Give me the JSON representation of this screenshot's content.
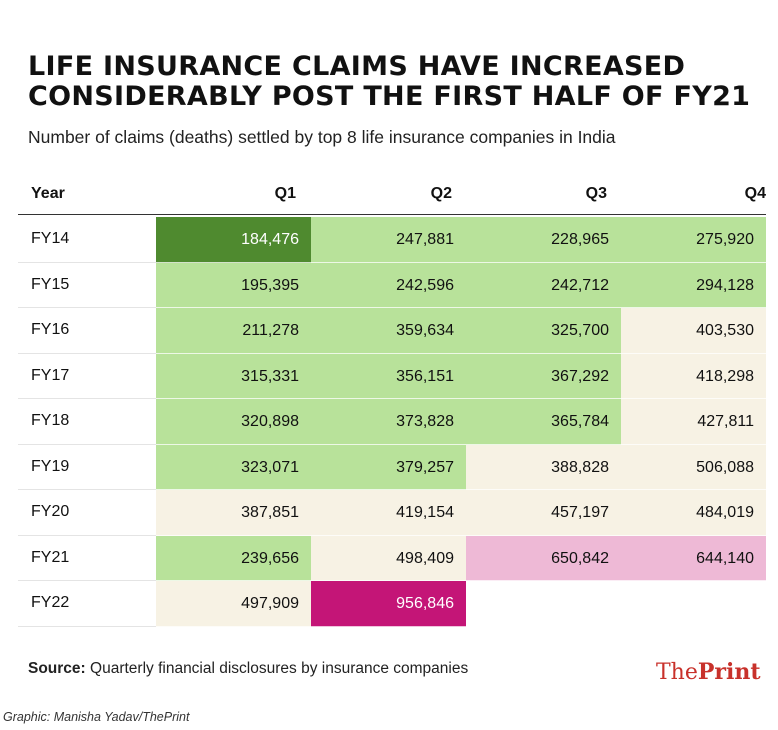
{
  "title_line1": "LIFE INSURANCE CLAIMS HAVE INCREASED",
  "title_line2": "CONSIDERABLY POST THE FIRST HALF OF FY21",
  "subtitle": "Number of claims (deaths) settled by top 8 life insurance companies in India",
  "source_label": "Source:",
  "source_text": " Quarterly financial disclosures by insurance companies",
  "logo_the": "The",
  "logo_print": "Print",
  "credit": "Graphic: Manisha Yadav/ThePrint",
  "colors": {
    "dark_green": "#4f8a2f",
    "light_green": "#b8e29a",
    "cream": "#f7f2e4",
    "pink": "#eeb9d6",
    "magenta": "#c41577"
  },
  "chart_data": {
    "type": "table",
    "title": "LIFE INSURANCE CLAIMS HAVE INCREASED CONSIDERABLY POST THE FIRST HALF OF FY21",
    "subtitle": "Number of claims (deaths) settled by top 8 life insurance companies in India",
    "row_header": "Year",
    "columns": [
      "Q1",
      "Q2",
      "Q3",
      "Q4"
    ],
    "rows": [
      {
        "year": "FY14",
        "values": [
          184476,
          247881,
          228965,
          275920
        ],
        "display": [
          "184,476",
          "247,881",
          "228,965",
          "275,920"
        ],
        "colors": [
          "dark_green",
          "light_green",
          "light_green",
          "light_green"
        ]
      },
      {
        "year": "FY15",
        "values": [
          195395,
          242596,
          242712,
          294128
        ],
        "display": [
          "195,395",
          "242,596",
          "242,712",
          "294,128"
        ],
        "colors": [
          "light_green",
          "light_green",
          "light_green",
          "light_green"
        ]
      },
      {
        "year": "FY16",
        "values": [
          211278,
          359634,
          325700,
          403530
        ],
        "display": [
          "211,278",
          "359,634",
          "325,700",
          "403,530"
        ],
        "colors": [
          "light_green",
          "light_green",
          "light_green",
          "cream"
        ]
      },
      {
        "year": "FY17",
        "values": [
          315331,
          356151,
          367292,
          418298
        ],
        "display": [
          "315,331",
          "356,151",
          "367,292",
          "418,298"
        ],
        "colors": [
          "light_green",
          "light_green",
          "light_green",
          "cream"
        ]
      },
      {
        "year": "FY18",
        "values": [
          320898,
          373828,
          365784,
          427811
        ],
        "display": [
          "320,898",
          "373,828",
          "365,784",
          "427,811"
        ],
        "colors": [
          "light_green",
          "light_green",
          "light_green",
          "cream"
        ]
      },
      {
        "year": "FY19",
        "values": [
          323071,
          379257,
          388828,
          506088
        ],
        "display": [
          "323,071",
          "379,257",
          "388,828",
          "506,088"
        ],
        "colors": [
          "light_green",
          "light_green",
          "cream",
          "cream"
        ]
      },
      {
        "year": "FY20",
        "values": [
          387851,
          419154,
          457197,
          484019
        ],
        "display": [
          "387,851",
          "419,154",
          "457,197",
          "484,019"
        ],
        "colors": [
          "cream",
          "cream",
          "cream",
          "cream"
        ]
      },
      {
        "year": "FY21",
        "values": [
          239656,
          498409,
          650842,
          644140
        ],
        "display": [
          "239,656",
          "498,409",
          "650,842",
          "644,140"
        ],
        "colors": [
          "light_green",
          "cream",
          "pink",
          "pink"
        ]
      },
      {
        "year": "FY22",
        "values": [
          497909,
          956846,
          null,
          null
        ],
        "display": [
          "497,909",
          "956,846",
          "",
          ""
        ],
        "colors": [
          "cream",
          "magenta",
          "none",
          "none"
        ]
      }
    ]
  }
}
